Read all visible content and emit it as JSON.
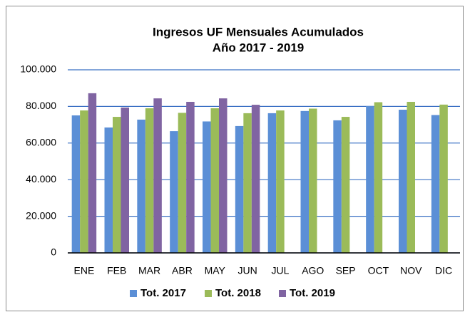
{
  "chart_data": {
    "type": "bar",
    "title": "Ingresos UF Mensuales Acumulados",
    "subtitle": "Año 2017 - 2019",
    "categories": [
      "ENE",
      "FEB",
      "MAR",
      "ABR",
      "MAY",
      "JUN",
      "JUL",
      "AGO",
      "SEP",
      "OCT",
      "NOV",
      "DIC"
    ],
    "series": [
      {
        "name": "Tot. 2017",
        "color": "#5b8fd6",
        "values": [
          75100,
          68500,
          72800,
          66500,
          71800,
          69300,
          76300,
          77500,
          72400,
          80200,
          78200,
          75300
        ]
      },
      {
        "name": "Tot. 2018",
        "color": "#9bbb59",
        "values": [
          77800,
          74300,
          79000,
          76500,
          79000,
          76300,
          77800,
          78800,
          74300,
          82300,
          82500,
          81000
        ]
      },
      {
        "name": "Tot. 2019",
        "color": "#8064a2",
        "values": [
          87200,
          79400,
          84400,
          82500,
          84400,
          80900,
          null,
          null,
          null,
          null,
          null,
          null
        ]
      }
    ],
    "ylim": [
      0,
      100000
    ],
    "yticks": [
      0,
      {
        "value": 20000,
        "label": "20.000"
      },
      {
        "value": 40000,
        "label": "40.000"
      },
      {
        "value": 60000,
        "label": "60.000"
      },
      {
        "value": 80000,
        "label": "80.000"
      },
      {
        "value": 100000,
        "label": "100.000"
      }
    ],
    "grid": true,
    "legend": "bottom"
  }
}
